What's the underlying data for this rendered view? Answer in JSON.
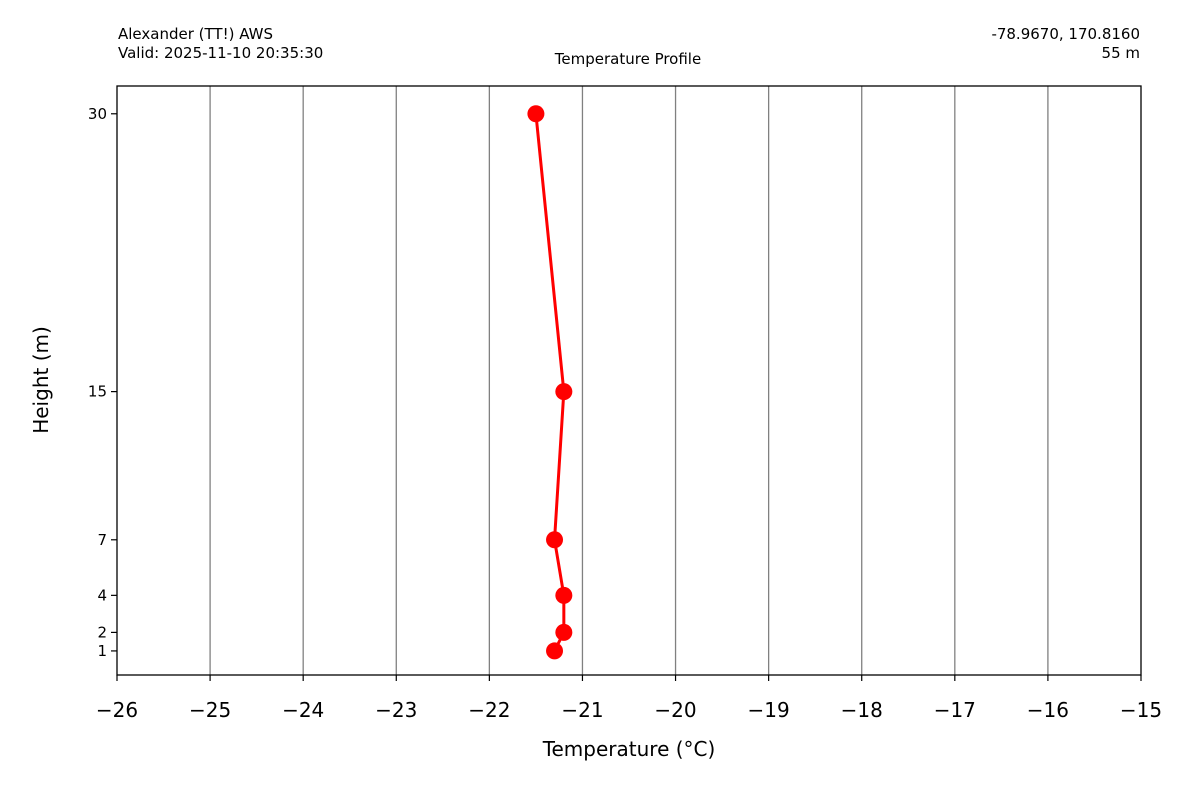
{
  "header": {
    "station": "Alexander (TT!) AWS",
    "valid": "Valid: 2025-11-10 20:35:30",
    "coords": "-78.9670, 170.8160",
    "elevation": "55 m"
  },
  "chart_data": {
    "type": "line",
    "title": "Temperature Profile",
    "xlabel": "Temperature (°C)",
    "ylabel": "Height (m)",
    "xlim": [
      -26,
      -15
    ],
    "ylim": [
      -0.3,
      31.5
    ],
    "x_ticks": [
      -26,
      -25,
      -24,
      -23,
      -22,
      -21,
      -20,
      -19,
      -18,
      -17,
      -16,
      -15
    ],
    "x_tick_labels": [
      "−26",
      "−25",
      "−24",
      "−23",
      "−22",
      "−21",
      "−20",
      "−19",
      "−18",
      "−17",
      "−16",
      "−15"
    ],
    "y_ticks": [
      1,
      2,
      4,
      7,
      15,
      30
    ],
    "y_tick_labels": [
      "1",
      "2",
      "4",
      "7",
      "15",
      "30"
    ],
    "grid": "vertical",
    "series": [
      {
        "color": "#ff0000",
        "points": [
          {
            "x": -21.3,
            "y": 1
          },
          {
            "x": -21.2,
            "y": 2
          },
          {
            "x": -21.2,
            "y": 4
          },
          {
            "x": -21.3,
            "y": 7
          },
          {
            "x": -21.2,
            "y": 15
          },
          {
            "x": -21.5,
            "y": 30
          }
        ]
      }
    ],
    "grid_color": "#808080"
  }
}
